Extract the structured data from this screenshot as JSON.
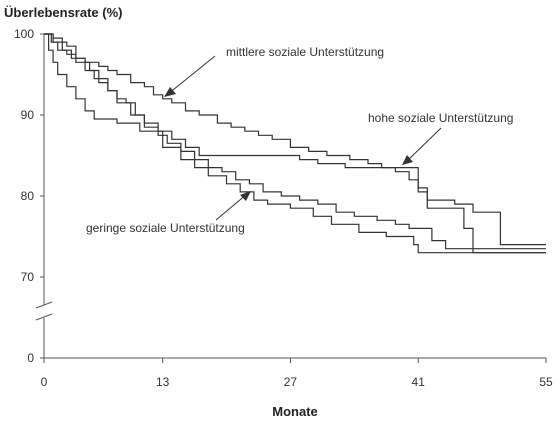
{
  "chart_data": {
    "type": "line",
    "step": true,
    "ylabel": "Überlebensrate (%)",
    "xlabel": "Monate",
    "xlim": [
      0,
      55
    ],
    "xticks": [
      0,
      13,
      27,
      41,
      55
    ],
    "yticks": [
      0,
      70,
      80,
      90,
      100
    ],
    "axis_break": "between 0 and 70 on y-axis",
    "grid": false,
    "legend": "none (series labelled by annotations with arrows)",
    "series": [
      {
        "name": "mittlere soziale Unterstützung",
        "color": "#333333",
        "x": [
          0,
          0.8,
          1.5,
          2.5,
          3.5,
          4.5,
          6,
          7,
          8,
          9.5,
          11,
          12,
          13,
          14,
          15.5,
          17,
          19,
          20.5,
          22,
          23.5,
          25,
          27,
          29,
          31,
          33.5,
          35.5,
          37,
          38.5,
          40,
          41,
          42,
          45,
          47,
          50,
          55
        ],
        "y": [
          100,
          99,
          98,
          97.5,
          97,
          96.5,
          96,
          95.5,
          95,
          94,
          93.5,
          92.5,
          92,
          91.5,
          90.5,
          90,
          89,
          88.5,
          88,
          87.5,
          87,
          86,
          85.5,
          85,
          84.5,
          84,
          83.5,
          83,
          82,
          80.5,
          79.5,
          79,
          78,
          74,
          74
        ]
      },
      {
        "name": "hohe soziale Unterstützung",
        "color": "#333333",
        "x": [
          0,
          1,
          2,
          3,
          4.5,
          5.5,
          7,
          8,
          9,
          10,
          11,
          12.5,
          14,
          15.5,
          17,
          20,
          25,
          28,
          30,
          33,
          38,
          41,
          42,
          45,
          46,
          47,
          55
        ],
        "y": [
          100,
          99.5,
          98,
          97,
          95.5,
          94.5,
          93,
          92,
          91.5,
          90,
          89,
          88,
          87,
          86,
          85,
          85,
          85,
          84.5,
          84,
          83.5,
          83.5,
          81,
          78.5,
          78.5,
          76,
          73,
          73
        ]
      },
      {
        "name": "",
        "color": "#333333",
        "x": [
          0,
          1,
          2.5,
          3.5,
          5,
          6,
          7,
          8,
          9.5,
          11,
          12.5,
          13.5,
          15,
          16.5,
          18,
          19.5,
          21,
          22.5,
          24,
          26,
          28,
          30,
          32,
          34,
          36.5,
          38.5,
          40,
          42.5,
          44,
          55
        ],
        "y": [
          100,
          99,
          98.5,
          96.5,
          95.5,
          94,
          93,
          91.5,
          90,
          88.5,
          87.5,
          86.5,
          85.5,
          84.5,
          83.5,
          83,
          82,
          81.5,
          80.5,
          80,
          79.5,
          79,
          78,
          77.5,
          77,
          76.5,
          76,
          74.5,
          73.5,
          73.5
        ]
      },
      {
        "name": "geringe soziale Unterstützung",
        "color": "#333333",
        "x": [
          0,
          0.5,
          1,
          1.5,
          2.5,
          3.5,
          4.5,
          5.5,
          8,
          10.5,
          13,
          15,
          16.5,
          18,
          20,
          21.5,
          23,
          24.5,
          27,
          29.5,
          31.5,
          34.5,
          37.5,
          40.5,
          41,
          44,
          55
        ],
        "y": [
          100,
          98,
          96.5,
          95,
          93.5,
          92,
          90.5,
          89.5,
          89,
          88,
          86,
          84.5,
          83.5,
          82.5,
          81.5,
          80.5,
          79.5,
          79,
          78.5,
          77.5,
          76.5,
          75.5,
          75,
          74,
          73,
          73,
          73
        ]
      }
    ],
    "annotations": [
      {
        "text": "mittlere soziale Unterstützung",
        "arrow_to": [
          13.5,
          92.5
        ]
      },
      {
        "text": "hohe soziale Unterstützung",
        "arrow_to": [
          39,
          83.5
        ]
      },
      {
        "text": "geringe soziale Unterstützung",
        "arrow_to": [
          22,
          80
        ]
      }
    ]
  }
}
